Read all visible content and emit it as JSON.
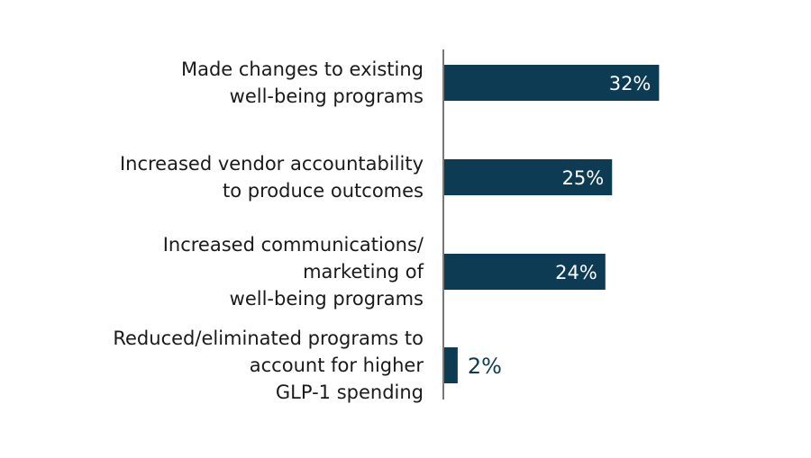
{
  "chart_data": {
    "type": "bar",
    "orientation": "horizontal",
    "categories": [
      [
        "Made changes to existing",
        "well-being programs"
      ],
      [
        "Increased vendor accountability",
        "to produce outcomes"
      ],
      [
        "Increased communications/",
        "marketing of",
        "well-being programs"
      ],
      [
        "Reduced/eliminated programs to",
        "account for higher",
        "GLP-1 spending"
      ]
    ],
    "values": [
      32,
      25,
      24,
      2
    ],
    "value_labels": [
      "32%",
      "25%",
      "24%",
      "2%"
    ],
    "unit": "%",
    "title": "",
    "xlabel": "",
    "ylabel": "",
    "xlim": [
      0,
      40
    ],
    "grid": false,
    "legend": "none",
    "colors": {
      "bar": "#0d3b54",
      "label_inside": "#ffffff",
      "label_outside": "#0d3b54",
      "axis": "#4d4d4d",
      "text": "#1a1a1a"
    }
  }
}
